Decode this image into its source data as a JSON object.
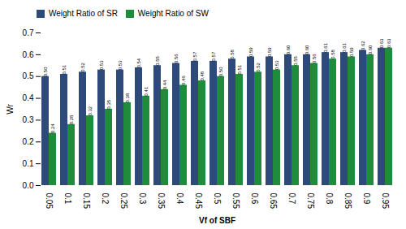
{
  "chart_data": {
    "type": "bar",
    "categories": [
      "0.05",
      "0.1",
      "0.15",
      "0.2",
      "0.25",
      "0.3",
      "0.35",
      "0.4",
      "0.45",
      "0.5",
      "0.55",
      "0.6",
      "0.65",
      "0.7",
      "0.75",
      "0.8",
      "0.85",
      "0.9",
      "0.95"
    ],
    "series": [
      {
        "name": "Weight Ratio of SR",
        "color": "#2E4A7A",
        "values": [
          0.5,
          0.51,
          0.52,
          0.53,
          0.53,
          0.54,
          0.55,
          0.56,
          0.57,
          0.57,
          0.58,
          0.59,
          0.59,
          0.6,
          0.6,
          0.61,
          0.61,
          0.62,
          0.63
        ],
        "value_labels": [
          "0.50",
          "0.51",
          "0.52",
          "0.53",
          "0.53",
          "0.54",
          "0.55",
          "0.56",
          "0.57",
          "0.57",
          "0.58",
          "0.59",
          "0.59",
          "0.60",
          "0.60",
          "0.61",
          "0.61",
          "0.62",
          "0.63"
        ]
      },
      {
        "name": "Weight Ratio of SW",
        "color": "#1E8C3A",
        "values": [
          0.24,
          0.28,
          0.32,
          0.35,
          0.38,
          0.41,
          0.44,
          0.46,
          0.48,
          0.5,
          0.51,
          0.52,
          0.53,
          0.55,
          0.56,
          0.58,
          0.59,
          0.6,
          0.63
        ],
        "value_labels": [
          "0.24",
          "0.28",
          "0.32",
          "0.35",
          "0.38",
          "0.41",
          "0.44",
          "0.46",
          "0.48",
          "0.50",
          "0.51",
          "0.52",
          "0.53",
          "0.55",
          "0.56",
          "0.58",
          "0.59",
          "0.60",
          "0.63"
        ]
      }
    ],
    "xlabel": "Vf of SBF",
    "ylabel": "Wr",
    "ylim": [
      0,
      0.7
    ],
    "yticks": [
      {
        "value": 0,
        "label": "0.0"
      },
      0.1,
      0.2,
      0.3,
      0.4,
      0.5,
      0.6,
      0.7
    ],
    "data_labels": true,
    "grid": false,
    "legend": "upper left"
  }
}
